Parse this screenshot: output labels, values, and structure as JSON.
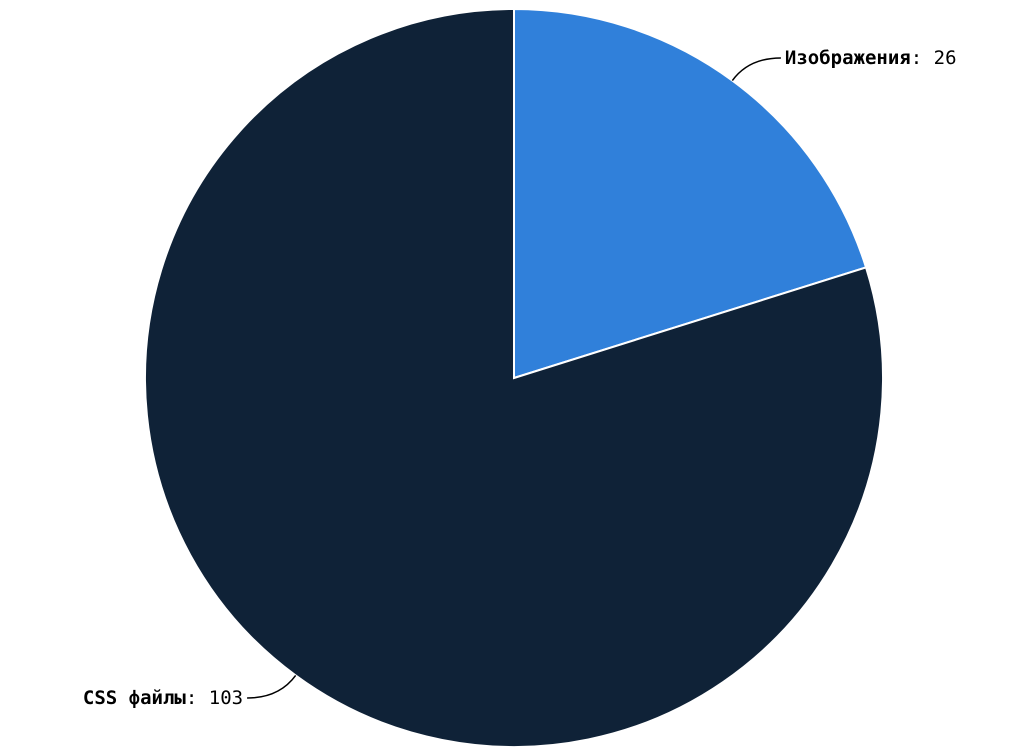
{
  "chart_data": {
    "type": "pie",
    "slices": [
      {
        "label": "Изображения",
        "value": 26,
        "color": "#3080da"
      },
      {
        "label": "CSS файлы",
        "value": 103,
        "color": "#0f2237"
      }
    ],
    "separator": ": "
  }
}
